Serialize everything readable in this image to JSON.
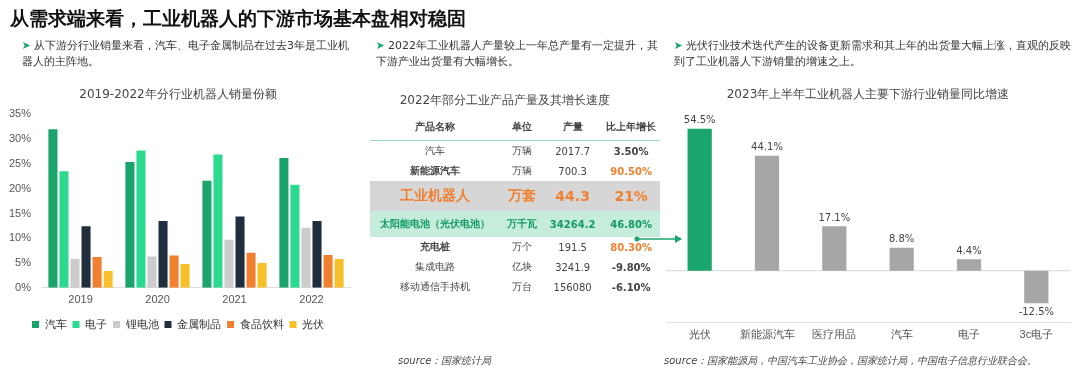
{
  "chart_data": [
    {
      "type": "bar",
      "title": "2019-2022年分行业机器人销量份额",
      "categories": [
        "2019",
        "2020",
        "2021",
        "2022"
      ],
      "series": [
        {
          "name": "汽车",
          "color": "#1aa36a",
          "values": [
            32,
            25.4,
            21.6,
            26.2
          ]
        },
        {
          "name": "电子",
          "color": "#2bd98f",
          "values": [
            23.5,
            27.7,
            26.9,
            20.8
          ]
        },
        {
          "name": "锂电池",
          "color": "#cccccc",
          "values": [
            5.8,
            6.3,
            9.7,
            12.1
          ]
        },
        {
          "name": "金属制品",
          "color": "#1f2d3d",
          "values": [
            12.4,
            13.5,
            14.4,
            13.5
          ]
        },
        {
          "name": "食品饮料",
          "color": "#f08030",
          "values": [
            6.2,
            6.5,
            7.1,
            6.6
          ]
        },
        {
          "name": "光伏",
          "color": "#f7c02b",
          "values": [
            3.4,
            4.8,
            5.0,
            5.8
          ]
        }
      ],
      "ylim": [
        0,
        35
      ],
      "yticks": [
        {
          "value": 0,
          "label": "0%"
        },
        {
          "value": 5,
          "label": "5%"
        },
        {
          "value": 10,
          "label": "10%"
        },
        {
          "value": 15,
          "label": "15%"
        },
        {
          "value": 20,
          "label": "20%"
        },
        {
          "value": 25,
          "label": "25%"
        },
        {
          "value": 30,
          "label": "30%"
        },
        {
          "value": 35,
          "label": "35%"
        }
      ],
      "legend": "bottom",
      "annotations": [
        "从需求端来看，工业机器人的下游市场基本盘相对稳固",
        "从下游分行业销量来看，汽车、电子金属制品在过去3年是工业机器人的主阵地。"
      ]
    },
    {
      "type": "other",
      "title": "2022年部分工业产品产量及其增长速度",
      "annotations": [
        "2022年工业机器人产量较上一年总产量有一定提升，其下游产业出货量有大幅增长。",
        "产品名称",
        "单位",
        "产量",
        "比上年增长",
        "汽车",
        "万辆",
        "2017.7",
        "3.50%",
        "新能源汽车",
        "万辆",
        "700.3",
        "90.50%",
        "工业机器人",
        "万套",
        "44.3",
        "21%",
        "太阳能电池（光伏电池）",
        "万千瓦",
        "34264.2",
        "46.80%",
        "充电桩",
        "万个",
        "191.5",
        "80.30%",
        "集成电路",
        "亿块",
        "3241.9",
        "-9.80%",
        "移动通信手持机",
        "万台",
        "156080",
        "-6.10%",
        "source：国家统计局"
      ]
    },
    {
      "type": "bar",
      "title": "2023年上半年工业机器人主要下游行业销量同比增速",
      "categories": [
        "光伏",
        "新能源汽车",
        "医疗用品",
        "汽车",
        "电子",
        "3c电子"
      ],
      "values": [
        54.5,
        44.1,
        17.1,
        8.8,
        4.4,
        -12.5
      ],
      "colors": [
        "#19a56b",
        "#a6a6a6",
        "#a6a6a6",
        "#a6a6a6",
        "#a6a6a6",
        "#a6a6a6"
      ],
      "value_labels": [
        "54.5%",
        "44.1%",
        "17.1%",
        "8.8%",
        "4.4%",
        "-12.5%"
      ],
      "tick_labels": "x",
      "ref_lines": [
        {
          "axis": "y",
          "value": 0,
          "color": "#d9d9d9"
        }
      ],
      "annotations": [
        "光伏行业技术迭代产生的设备更新需求和其上年的出货量大幅上涨，直观的反映到了工业机器人下游销量的增速之上。",
        "source：国家能源局，中国汽车工业协会，国家统计局，中国电子信息行业联合会。"
      ]
    }
  ]
}
